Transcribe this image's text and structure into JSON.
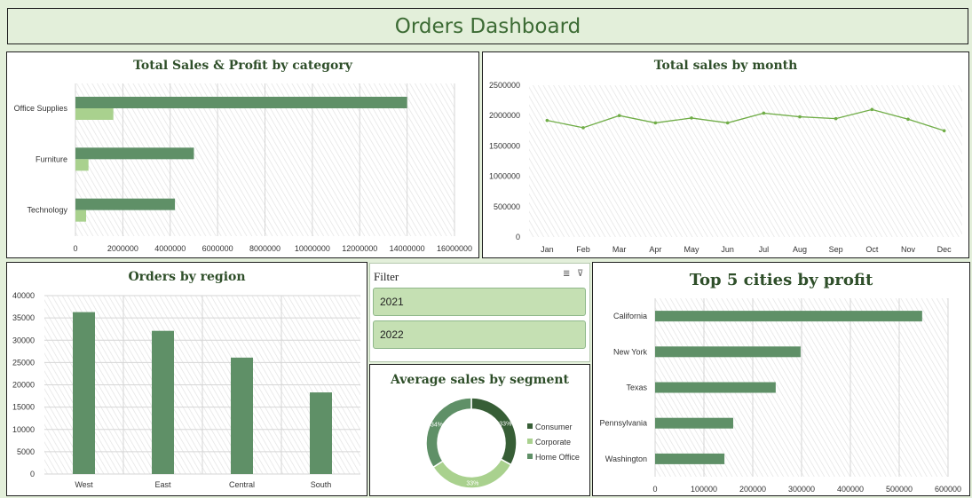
{
  "dashboard": {
    "title": "Orders Dashboard"
  },
  "colors": {
    "dark_green": "#5f9067",
    "light_green": "#a9d18e",
    "line_green": "#70ad47",
    "background": "#e3efda"
  },
  "filter": {
    "title": "Filter",
    "icons": [
      "multi-select-icon",
      "clear-filter-icon"
    ],
    "items": [
      "2021",
      "2022"
    ]
  },
  "chart_data": [
    {
      "id": "category",
      "type": "bar",
      "orientation": "horizontal",
      "title": "Total Sales  & Profit by category",
      "categories": [
        "Office Supplies",
        "Furniture",
        "Technology"
      ],
      "series": [
        {
          "values": [
            14000000,
            5000000,
            4200000
          ]
        },
        {
          "values": [
            1600000,
            550000,
            450000
          ]
        }
      ],
      "xlim": [
        0,
        16000000
      ],
      "xticks": [
        "0",
        "2000000",
        "4000000",
        "6000000",
        "8000000",
        "10000000",
        "12000000",
        "14000000",
        "16000000"
      ],
      "grid": true
    },
    {
      "id": "month",
      "type": "line",
      "title": "Total sales by month",
      "categories": [
        "Jan",
        "Feb",
        "Mar",
        "Apr",
        "May",
        "Jun",
        "Jul",
        "Aug",
        "Sep",
        "Oct",
        "Nov",
        "Dec"
      ],
      "values": [
        1920000,
        1800000,
        2000000,
        1880000,
        1960000,
        1880000,
        2040000,
        1980000,
        1950000,
        2100000,
        1940000,
        1750000
      ],
      "ylim": [
        0,
        2500000
      ],
      "yticks": [
        "0",
        "500000",
        "1000000",
        "1500000",
        "2000000",
        "2500000"
      ],
      "grid": true
    },
    {
      "id": "region",
      "type": "bar",
      "title": "Orders by region",
      "categories": [
        "West",
        "East",
        "Central",
        "South"
      ],
      "values": [
        36300,
        32100,
        26100,
        18300
      ],
      "ylim": [
        0,
        40000
      ],
      "yticks": [
        "0",
        "5000",
        "10000",
        "15000",
        "20000",
        "25000",
        "30000",
        "35000",
        "40000"
      ],
      "grid": true
    },
    {
      "id": "segment",
      "type": "pie",
      "title": "Average sales by segment",
      "labels": [
        "Consumer",
        "Corporate",
        "Home Office"
      ],
      "values": [
        33,
        33,
        34
      ],
      "data_labels": [
        "33%",
        "33%",
        "34%"
      ],
      "colors": [
        "#375e36",
        "#a9d18e",
        "#5f9067"
      ],
      "legend": "right"
    },
    {
      "id": "cities",
      "type": "bar",
      "orientation": "horizontal",
      "title": "Top 5 cities by profit",
      "categories": [
        "California",
        "New York",
        "Texas",
        "Pennsylvania",
        "Washington"
      ],
      "values": [
        547000,
        298000,
        247000,
        160000,
        142000
      ],
      "xlim": [
        0,
        600000
      ],
      "xticks": [
        "0",
        "100000",
        "200000",
        "300000",
        "400000",
        "500000",
        "600000"
      ],
      "grid": true
    }
  ]
}
